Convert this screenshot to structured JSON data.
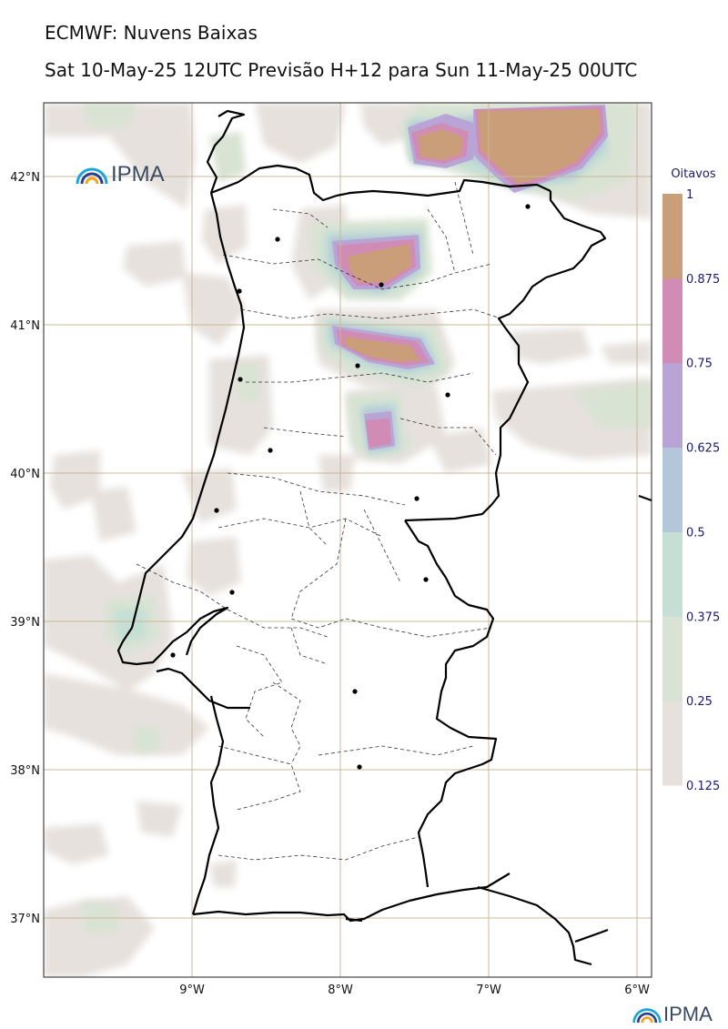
{
  "title": "ECMWF: Nuvens Baixas",
  "subtitle": "Sat 10-May-25 12UTC Previsão H+12 para Sun 11-May-25 00UTC",
  "logo_text": "IPMA",
  "colorbar": {
    "title": "Oitavos",
    "ticks": [
      "0.125",
      "0.25",
      "0.375",
      "0.5",
      "0.625",
      "0.75",
      "0.875",
      "1"
    ],
    "colors": [
      "#e6e1dd",
      "#d8e3d3",
      "#c5dfd5",
      "#b4c6d9",
      "#b8a4d5",
      "#d08cb5",
      "#c99e78"
    ]
  },
  "axes": {
    "lon_labels": [
      "9°W",
      "8°W",
      "7°W",
      "6°W"
    ],
    "lat_labels": [
      "42°N",
      "41°N",
      "40°N",
      "39°N",
      "38°N",
      "37°N"
    ]
  }
}
